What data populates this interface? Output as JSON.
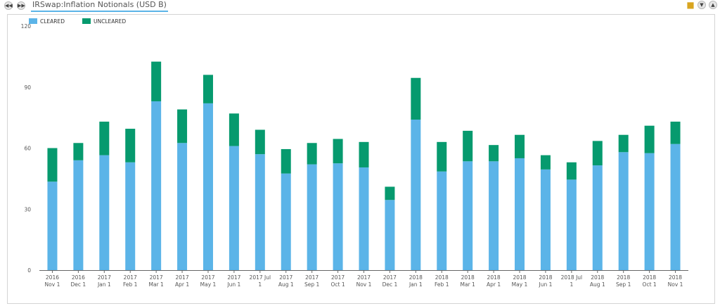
{
  "header": {
    "title": "IRSwap:Inflation Notionals (USD B)"
  },
  "icons": {
    "prev": "rewind-icon",
    "next": "fast-forward-icon",
    "folder": "folder-icon",
    "collapse": "chevron-down-icon",
    "expand": "chevron-up-icon"
  },
  "chart_data": {
    "type": "bar",
    "stacked": true,
    "categories": [
      [
        "2016",
        "Nov 1"
      ],
      [
        "2016",
        "Dec 1"
      ],
      [
        "2017",
        "Jan 1"
      ],
      [
        "2017",
        "Feb 1"
      ],
      [
        "2017",
        "Mar 1"
      ],
      [
        "2017",
        "Apr 1"
      ],
      [
        "2017",
        "May 1"
      ],
      [
        "2017",
        "Jun 1"
      ],
      [
        "2017 Jul",
        "1"
      ],
      [
        "2017",
        "Aug 1"
      ],
      [
        "2017",
        "Sep 1"
      ],
      [
        "2017",
        "Oct 1"
      ],
      [
        "2017",
        "Nov 1"
      ],
      [
        "2017",
        "Dec 1"
      ],
      [
        "2018",
        "Jan 1"
      ],
      [
        "2018",
        "Feb 1"
      ],
      [
        "2018",
        "Mar 1"
      ],
      [
        "2018",
        "Apr 1"
      ],
      [
        "2018",
        "May 1"
      ],
      [
        "2018",
        "Jun 1"
      ],
      [
        "2018 Jul",
        "1"
      ],
      [
        "2018",
        "Aug 1"
      ],
      [
        "2018",
        "Sep 1"
      ],
      [
        "2018",
        "Oct 1"
      ],
      [
        "2018",
        "Nov 1"
      ]
    ],
    "series": [
      {
        "name": "CLEARED",
        "color": "#5bb4e8",
        "values": [
          43.5,
          54,
          56.5,
          53,
          83,
          62.5,
          82,
          61,
          57,
          47.5,
          52,
          52.5,
          50.5,
          34.5,
          74,
          48.5,
          53.5,
          53.5,
          55,
          49.5,
          44.5,
          51.5,
          58,
          57.5,
          62
        ]
      },
      {
        "name": "UNCLEARED",
        "color": "#069a6e",
        "values": [
          16.5,
          8.5,
          16.5,
          16.5,
          19.5,
          16.5,
          14,
          16,
          12,
          12,
          10.5,
          12,
          12.5,
          6.5,
          20.5,
          14.5,
          15,
          8,
          11.5,
          7,
          8.5,
          12,
          8.5,
          13.5,
          11
        ]
      }
    ],
    "ylim": [
      0,
      120
    ],
    "yticks": [
      0,
      30,
      60,
      90,
      120
    ],
    "legend": "top-left",
    "grid": false
  }
}
